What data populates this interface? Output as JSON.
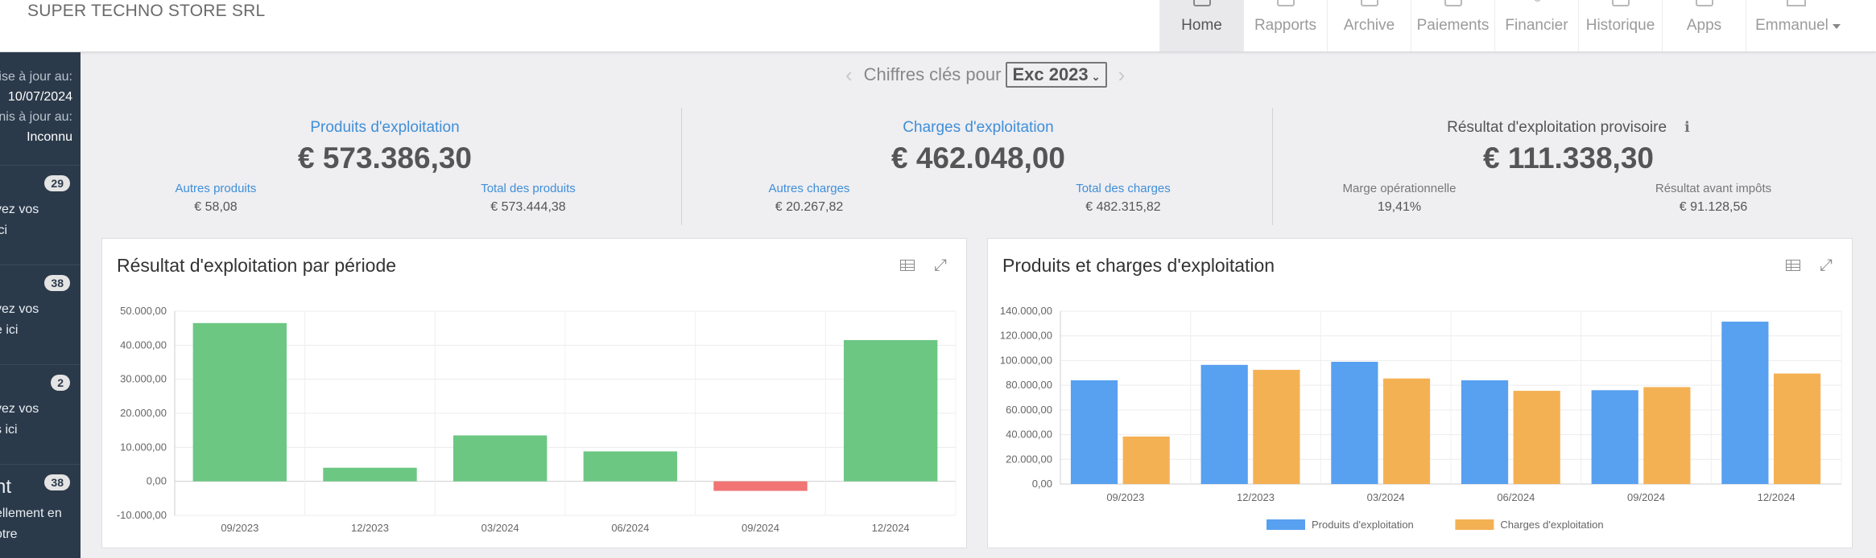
{
  "app": {
    "company": "SUPER TECHNO STORE SRL"
  },
  "nav": {
    "items": [
      {
        "label": "Home",
        "icon": "home-icon",
        "active": true
      },
      {
        "label": "Rapports",
        "icon": "reports-icon"
      },
      {
        "label": "Archive",
        "icon": "archive-icon"
      },
      {
        "label": "Paiements",
        "icon": "payments-icon"
      },
      {
        "label": "Financier",
        "icon": "euro-icon"
      },
      {
        "label": "Historique",
        "icon": "history-icon"
      },
      {
        "label": "Apps",
        "icon": "apps-icon"
      }
    ],
    "user": "Emmanuel"
  },
  "sidebar": {
    "sync1_label": "ise à jour au:",
    "sync1_value": "10/07/2024",
    "sync2_label": "nis à jour au:",
    "sync2_value": "Inconnu",
    "blocks": [
      {
        "badge": "29",
        "line1": "yez vos",
        "line2": "ici"
      },
      {
        "badge": "38",
        "line1": "yez vos",
        "line2": "e ici"
      },
      {
        "badge": "2",
        "line1": "yez vos",
        "line2": "s ici"
      },
      {
        "badge": "38",
        "title": "nt",
        "line1": "ellement en",
        "line2": "otre"
      }
    ]
  },
  "key_figures": {
    "label": "Chiffres clés pour",
    "selected_period": "Exc 2023"
  },
  "kpis": [
    {
      "title": "Produits d'exploitation",
      "value": "€ 573.386,30",
      "sub": [
        {
          "label": "Autres produits",
          "value": "€ 58,08"
        },
        {
          "label": "Total des produits",
          "value": "€ 573.444,38"
        }
      ]
    },
    {
      "title": "Charges d'exploitation",
      "value": "€ 462.048,00",
      "sub": [
        {
          "label": "Autres charges",
          "value": "€ 20.267,82"
        },
        {
          "label": "Total des charges",
          "value": "€ 482.315,82"
        }
      ]
    },
    {
      "title": "Résultat d'exploitation provisoire",
      "info_icon": "ℹ",
      "value": "€ 111.338,30",
      "sub": [
        {
          "label": "Marge opérationnelle",
          "value": "19,41%"
        },
        {
          "label": "Résultat avant impôts",
          "value": "€ 91.128,56"
        }
      ]
    }
  ],
  "panels": {
    "left_title": "Résultat d'exploitation par période",
    "right_title": "Produits et charges d'exploitation"
  },
  "colors": {
    "positive": "#6cc783",
    "negative": "#f07574",
    "produits": "#58a0f0",
    "charges": "#f4b154"
  },
  "chart_data": [
    {
      "type": "bar",
      "title": "Résultat d'exploitation par période",
      "categories": [
        "09/2023",
        "12/2023",
        "03/2024",
        "06/2024",
        "09/2024",
        "12/2024"
      ],
      "values": [
        46500,
        4000,
        13500,
        8800,
        -2800,
        41500
      ],
      "ylim": [
        -10000,
        50000
      ],
      "yticks": [
        "50.000,00",
        "40.000,00",
        "30.000,00",
        "20.000,00",
        "10.000,00",
        "0,00",
        "-10.000,00"
      ],
      "ytick_values": [
        50000,
        40000,
        30000,
        20000,
        10000,
        0,
        -10000
      ],
      "grid": true,
      "legend": "none"
    },
    {
      "type": "bar",
      "title": "Produits et charges d'exploitation",
      "categories": [
        "09/2023",
        "12/2023",
        "03/2024",
        "06/2024",
        "09/2024",
        "12/2024"
      ],
      "series": [
        {
          "name": "Produits d'exploitation",
          "values": [
            84000,
            96500,
            99000,
            84000,
            76000,
            131500
          ]
        },
        {
          "name": "Charges d'exploitation",
          "values": [
            38500,
            92500,
            85500,
            75500,
            78500,
            89500
          ]
        }
      ],
      "ylim": [
        0,
        140000
      ],
      "yticks": [
        "140.000,00",
        "120.000,00",
        "100.000,00",
        "80.000,00",
        "60.000,00",
        "40.000,00",
        "20.000,00",
        "0,00"
      ],
      "ytick_values": [
        140000,
        120000,
        100000,
        80000,
        60000,
        40000,
        20000,
        0
      ],
      "grid": true,
      "legend": "bottom"
    }
  ]
}
